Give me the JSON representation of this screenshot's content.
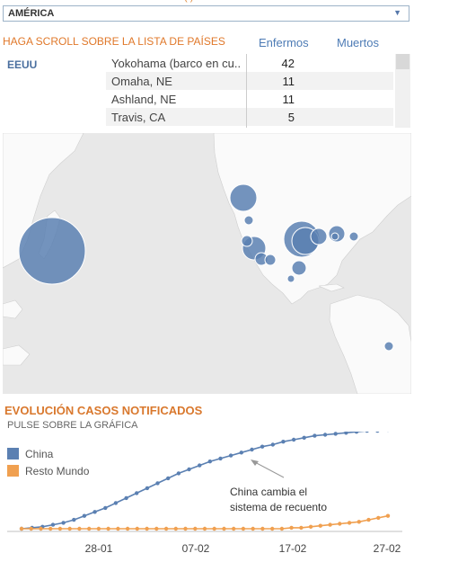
{
  "header": {
    "region_value": "AMÉRICA",
    "top_cut_text": "(                     )"
  },
  "table": {
    "scroll_title": "HAGA SCROLL SOBRE LA LISTA DE PAÍSES",
    "col_cases": "Enfermos",
    "col_deaths": "Muertos",
    "country": "EEUU",
    "rows": [
      {
        "place": "Yokohama (barco en cu..",
        "cases": "42"
      },
      {
        "place": "Omaha, NE",
        "cases": "11"
      },
      {
        "place": "Ashland, NE",
        "cases": "11"
      },
      {
        "place": "Travis, CA",
        "cases": "5"
      }
    ]
  },
  "map": {
    "land_color": "#fafafa",
    "water_color": "#e8e8e8",
    "bubble_color": "#5b80b2",
    "bubble_levels": [
      42,
      25,
      20,
      14,
      11,
      10,
      8,
      6,
      5,
      4,
      3,
      2,
      1,
      1,
      1,
      1
    ]
  },
  "chart": {
    "title": "EVOLUCIÓN CASOS NOTIFICADOS",
    "subtitle": "PULSE SOBRE LA GRÁFICA",
    "annotation_line1": "China cambia el",
    "annotation_line2": "sistema de recuento"
  },
  "chart_data": {
    "type": "line",
    "x_tick_labels": [
      "28-01",
      "07-02",
      "17-02",
      "27-02"
    ],
    "grid": false,
    "legend_position": "top-left",
    "series": [
      {
        "name": "China",
        "color": "#5b80b2",
        "values": [
          0.0,
          0.01,
          0.02,
          0.04,
          0.06,
          0.09,
          0.13,
          0.17,
          0.21,
          0.26,
          0.31,
          0.36,
          0.41,
          0.46,
          0.51,
          0.56,
          0.6,
          0.64,
          0.68,
          0.71,
          0.74,
          0.77,
          0.8,
          0.83,
          0.85,
          0.88,
          0.9,
          0.92,
          0.94,
          0.95,
          0.96,
          0.97,
          0.98,
          0.99,
          0.99,
          1.0
        ]
      },
      {
        "name": "Resto Mundo",
        "color": "#f0a050",
        "values": [
          0,
          0,
          0,
          0,
          0,
          0,
          0,
          0,
          0,
          0,
          0,
          0,
          0,
          0,
          0,
          0,
          0,
          0,
          0,
          0,
          0,
          0,
          0,
          0,
          0,
          0,
          0,
          0,
          0.01,
          0.01,
          0.02,
          0.03,
          0.04,
          0.05,
          0.06,
          0.07,
          0.09,
          0.11,
          0.13
        ]
      }
    ]
  }
}
